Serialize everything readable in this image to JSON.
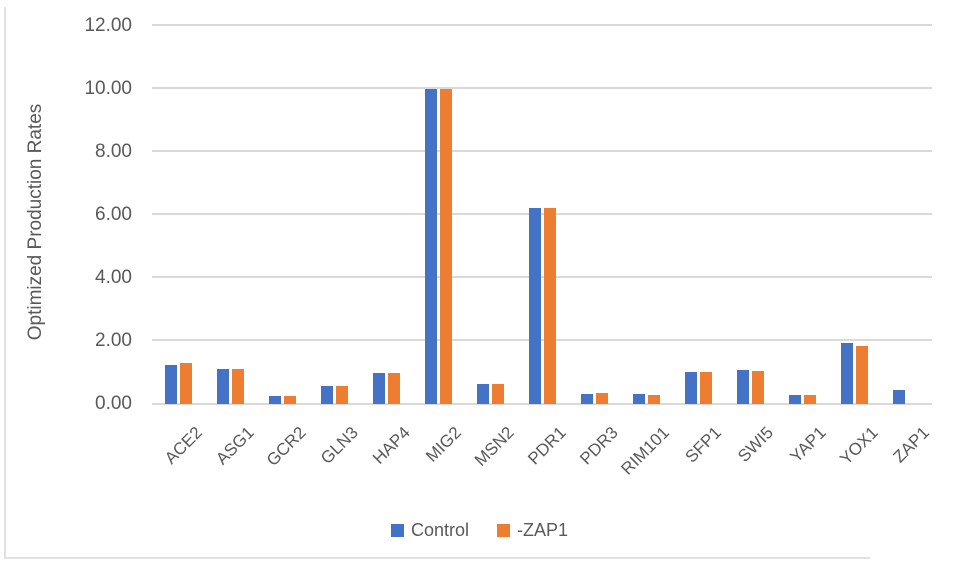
{
  "chart_data": {
    "type": "bar",
    "title": "",
    "xlabel": "",
    "ylabel": "Optimized Production Rates",
    "ylim": [
      0,
      12
    ],
    "ytick_step": 2,
    "ytick_decimals": 2,
    "grid": true,
    "legend_position": "bottom",
    "categories": [
      "ACE2",
      "ASG1",
      "GCR2",
      "GLN3",
      "HAP4",
      "MIG2",
      "MSN2",
      "PDR1",
      "PDR3",
      "RIM101",
      "SFP1",
      "SWI5",
      "YAP1",
      "YOX1",
      "ZAP1"
    ],
    "series": [
      {
        "name": "Control",
        "color": "#4472C4",
        "values": [
          1.25,
          1.12,
          0.25,
          0.56,
          0.98,
          10.0,
          0.63,
          6.2,
          0.32,
          0.31,
          1.0,
          1.07,
          0.27,
          1.93,
          0.45
        ]
      },
      {
        "name": "-ZAP1",
        "color": "#ED7D31",
        "values": [
          1.3,
          1.11,
          0.25,
          0.56,
          0.98,
          10.0,
          0.63,
          6.2,
          0.35,
          0.3,
          1.0,
          1.05,
          0.27,
          1.83,
          0.0
        ]
      }
    ]
  },
  "colors": {
    "axis_text": "#595959",
    "gridline": "#D9D9D9",
    "frame_border": "#E2E2E2"
  }
}
